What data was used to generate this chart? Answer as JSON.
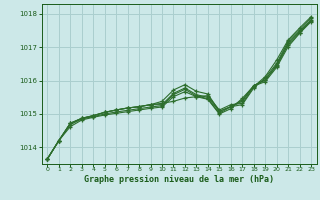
{
  "bg_color": "#cce8e8",
  "grid_color": "#aacece",
  "line_color": "#2d6e2d",
  "xlabel": "Graphe pression niveau de la mer (hPa)",
  "xlabel_color": "#1a5c1a",
  "tick_color": "#1a5c1a",
  "xlim": [
    -0.5,
    23.5
  ],
  "ylim": [
    1013.5,
    1018.3
  ],
  "yticks": [
    1014,
    1015,
    1016,
    1017,
    1018
  ],
  "xticks": [
    0,
    1,
    2,
    3,
    4,
    5,
    6,
    7,
    8,
    9,
    10,
    11,
    12,
    13,
    14,
    15,
    16,
    17,
    18,
    19,
    20,
    21,
    22,
    23
  ],
  "series": [
    [
      1013.65,
      1014.2,
      1014.72,
      1014.87,
      1014.95,
      1015.05,
      1015.12,
      1015.18,
      1015.22,
      1015.28,
      1015.32,
      1015.38,
      1015.48,
      1015.52,
      1015.55,
      1015.12,
      1015.28,
      1015.32,
      1015.82,
      1016.12,
      1016.62,
      1017.22,
      1017.58,
      1017.92
    ],
    [
      1013.65,
      1014.2,
      1014.72,
      1014.87,
      1014.95,
      1015.05,
      1015.12,
      1015.18,
      1015.22,
      1015.28,
      1015.38,
      1015.72,
      1015.88,
      1015.68,
      1015.6,
      1015.08,
      1015.22,
      1015.28,
      1015.78,
      1016.08,
      1016.52,
      1017.18,
      1017.52,
      1017.88
    ],
    [
      1013.65,
      1014.2,
      1014.72,
      1014.87,
      1014.95,
      1015.05,
      1015.12,
      1015.18,
      1015.22,
      1015.28,
      1015.28,
      1015.62,
      1015.78,
      1015.58,
      1015.5,
      1015.08,
      1015.22,
      1015.38,
      1015.85,
      1016.02,
      1016.48,
      1017.12,
      1017.48,
      1017.82
    ],
    [
      1013.65,
      1014.2,
      1014.68,
      1014.85,
      1014.92,
      1015.0,
      1015.06,
      1015.11,
      1015.16,
      1015.21,
      1015.25,
      1015.58,
      1015.74,
      1015.54,
      1015.46,
      1015.02,
      1015.22,
      1015.42,
      1015.85,
      1016.02,
      1016.44,
      1017.08,
      1017.44,
      1017.8
    ],
    [
      1013.65,
      1014.2,
      1014.62,
      1014.82,
      1014.9,
      1014.97,
      1015.02,
      1015.07,
      1015.12,
      1015.17,
      1015.21,
      1015.52,
      1015.67,
      1015.52,
      1015.44,
      1015.0,
      1015.16,
      1015.47,
      1015.84,
      1015.97,
      1016.4,
      1017.02,
      1017.42,
      1017.77
    ]
  ]
}
